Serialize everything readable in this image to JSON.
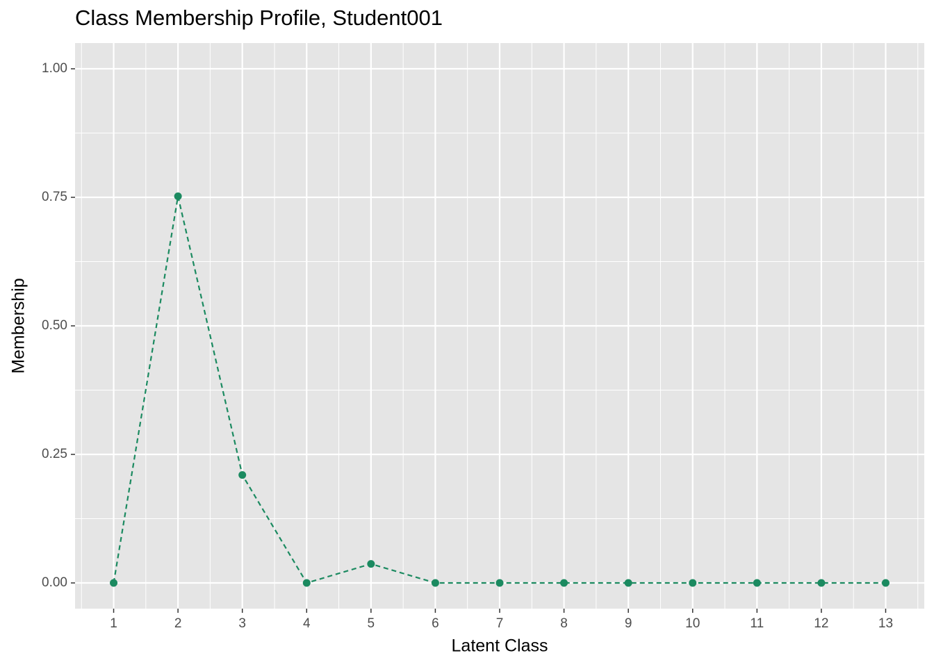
{
  "chart_data": {
    "type": "line",
    "title": "Class Membership Profile, Student001",
    "x_label": "Latent Class",
    "y_label": "Membership",
    "x": [
      1,
      2,
      3,
      4,
      5,
      6,
      7,
      8,
      9,
      10,
      11,
      12,
      13
    ],
    "series": [
      {
        "color": "#1b8a60",
        "values": [
          0,
          0.752,
          0.21,
          0,
          0.037,
          0,
          0,
          0,
          0,
          0,
          0,
          0,
          0
        ]
      }
    ],
    "xlim": [
      0.4,
      13.6
    ],
    "xticks": [
      1,
      2,
      3,
      4,
      5,
      6,
      7,
      8,
      9,
      10,
      11,
      12,
      13
    ],
    "ylim": [
      -0.05,
      1.05
    ],
    "yticks": [
      {
        "value": 0,
        "label": "0.00"
      },
      {
        "value": 0.25,
        "label": "0.25"
      },
      {
        "value": 0.5,
        "label": "0.50"
      },
      {
        "value": 0.75,
        "label": "0.75"
      },
      {
        "value": 1,
        "label": "1.00"
      }
    ],
    "grid": true
  }
}
